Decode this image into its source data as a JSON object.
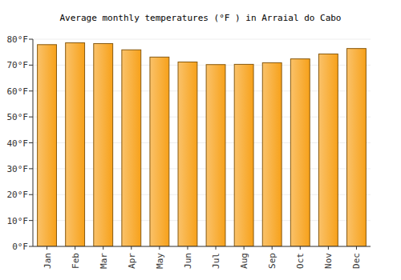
{
  "chart_data": {
    "type": "bar",
    "title": "Average monthly temperatures (°F ) in Arraial do Cabo",
    "categories": [
      "Jan",
      "Feb",
      "Mar",
      "Apr",
      "May",
      "Jun",
      "Jul",
      "Aug",
      "Sep",
      "Oct",
      "Nov",
      "Dec"
    ],
    "values": [
      77.9,
      78.6,
      78.3,
      75.9,
      73.1,
      71.2,
      70.2,
      70.3,
      70.9,
      72.4,
      74.3,
      76.4
    ],
    "color": "#f7a11a",
    "ylim": [
      0,
      80
    ],
    "yticks": [
      {
        "value": 0,
        "label": "0°F"
      },
      {
        "value": 10,
        "label": "10°F"
      },
      {
        "value": 20,
        "label": "20°F"
      },
      {
        "value": 30,
        "label": "30°F"
      },
      {
        "value": 40,
        "label": "40°F"
      },
      {
        "value": 50,
        "label": "50°F"
      },
      {
        "value": 60,
        "label": "60°F"
      },
      {
        "value": 70,
        "label": "70°F"
      },
      {
        "value": 80,
        "label": "80°F"
      }
    ],
    "grid": true
  }
}
